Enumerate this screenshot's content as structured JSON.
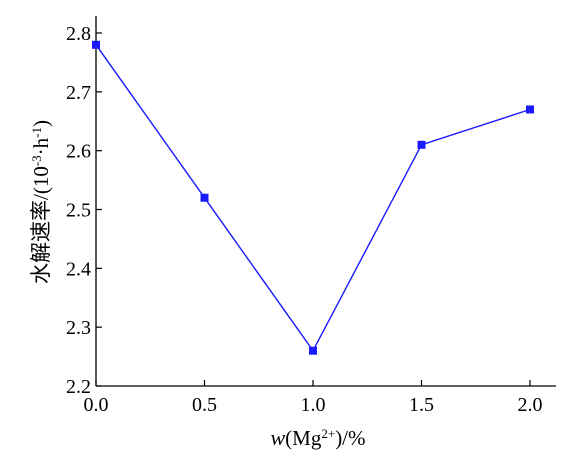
{
  "chart_data": {
    "type": "line",
    "x": [
      0.0,
      0.5,
      1.0,
      1.5,
      2.0
    ],
    "values": [
      2.78,
      2.52,
      2.26,
      2.61,
      2.67
    ],
    "xticks": [
      "0.0",
      "0.5",
      "1.0",
      "1.5",
      "2.0"
    ],
    "yticks": [
      "2.2",
      "2.3",
      "2.4",
      "2.5",
      "2.6",
      "2.7",
      "2.8"
    ],
    "xlim": [
      0.0,
      2.0
    ],
    "ylim": [
      2.2,
      2.8
    ],
    "xlabel": {
      "var": "w",
      "open": "(Mg",
      "sup": "2+",
      "close": ")/%"
    },
    "ylabel": {
      "main": "水解速率/(10",
      "sup1": "-3",
      "mid": "·h",
      "sup2": "-1",
      "end": ")"
    },
    "line_color": "#1a1aff",
    "marker_color": "#1a1aff",
    "marker": "square",
    "grid": false
  }
}
